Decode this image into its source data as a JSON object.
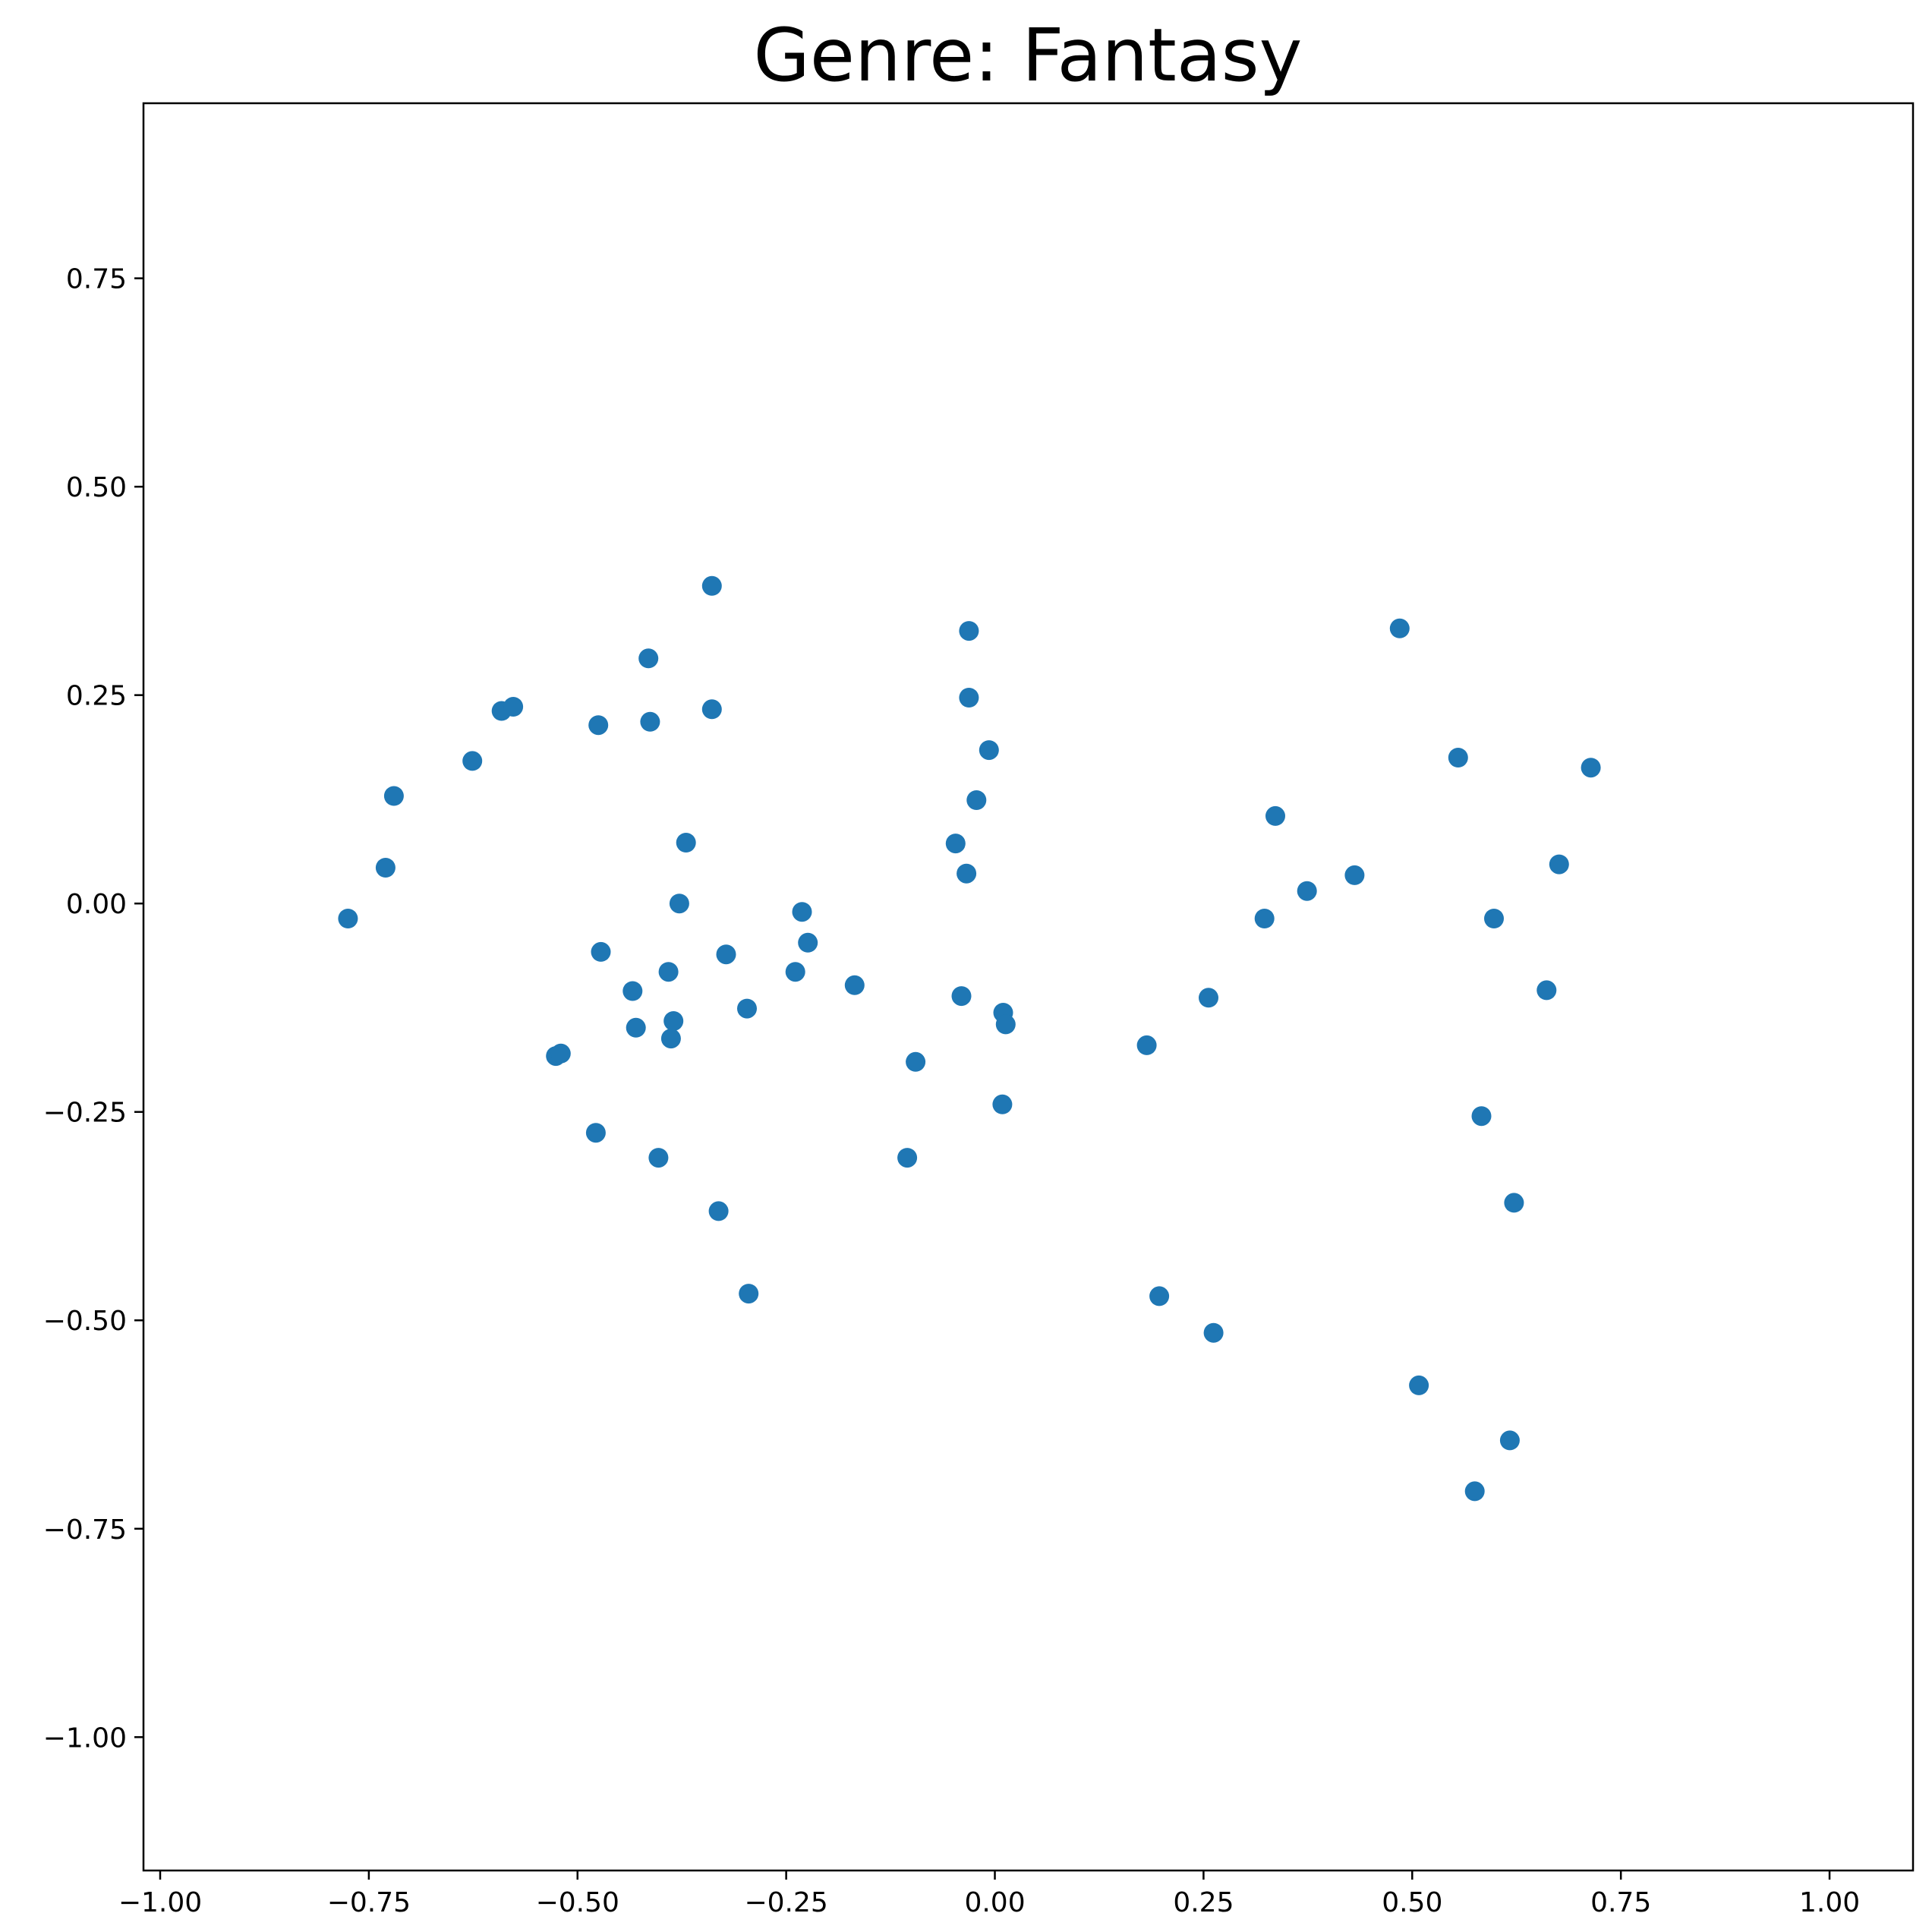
{
  "chart_data": {
    "type": "scatter",
    "title": "Genre: Fantasy",
    "xlabel": "",
    "ylabel": "",
    "xlim": [
      -1.02,
      1.1
    ],
    "ylim": [
      -1.16,
      0.96
    ],
    "grid": false,
    "legend": "none",
    "marker_color": "#1f77b4",
    "x_ticks": [
      -1.0,
      -0.75,
      -0.5,
      -0.25,
      0.0,
      0.25,
      0.5,
      0.75,
      1.0
    ],
    "x_tick_labels": [
      "−1.00",
      "−0.75",
      "−0.50",
      "−0.25",
      "0.00",
      "0.25",
      "0.50",
      "0.75",
      "1.00"
    ],
    "y_ticks": [
      0.75,
      0.5,
      0.25,
      0.0,
      -0.25,
      -0.5,
      -0.75,
      -1.0
    ],
    "y_tick_labels": [
      "0.75",
      "0.50",
      "0.25",
      "0.00",
      "−0.25",
      "−0.50",
      "−0.75",
      "−1.00"
    ],
    "points": [
      [
        -0.775,
        -0.018
      ],
      [
        -0.73,
        0.043
      ],
      [
        -0.72,
        0.129
      ],
      [
        -0.626,
        0.171
      ],
      [
        -0.591,
        0.231
      ],
      [
        -0.577,
        0.236
      ],
      [
        -0.475,
        0.214
      ],
      [
        -0.415,
        0.294
      ],
      [
        -0.413,
        0.218
      ],
      [
        -0.339,
        0.381
      ],
      [
        -0.339,
        0.233
      ],
      [
        -0.37,
        0.073
      ],
      [
        -0.378,
        0.0
      ],
      [
        -0.472,
        -0.058
      ],
      [
        -0.391,
        -0.082
      ],
      [
        -0.322,
        -0.061
      ],
      [
        -0.434,
        -0.105
      ],
      [
        -0.43,
        -0.149
      ],
      [
        -0.385,
        -0.141
      ],
      [
        -0.388,
        -0.162
      ],
      [
        -0.297,
        -0.126
      ],
      [
        -0.526,
        -0.183
      ],
      [
        -0.52,
        -0.18
      ],
      [
        -0.478,
        -0.275
      ],
      [
        -0.403,
        -0.305
      ],
      [
        -0.331,
        -0.369
      ],
      [
        -0.295,
        -0.468
      ],
      [
        -0.231,
        -0.01
      ],
      [
        -0.224,
        -0.047
      ],
      [
        -0.239,
        -0.082
      ],
      [
        -0.168,
        -0.098
      ],
      [
        -0.095,
        -0.19
      ],
      [
        -0.105,
        -0.305
      ],
      [
        -0.031,
        0.327
      ],
      [
        -0.031,
        0.247
      ],
      [
        -0.007,
        0.184
      ],
      [
        -0.022,
        0.124
      ],
      [
        -0.047,
        0.072
      ],
      [
        -0.034,
        0.036
      ],
      [
        -0.04,
        -0.111
      ],
      [
        0.01,
        -0.131
      ],
      [
        0.013,
        -0.145
      ],
      [
        0.009,
        -0.241
      ],
      [
        0.182,
        -0.17
      ],
      [
        0.197,
        -0.471
      ],
      [
        0.256,
        -0.113
      ],
      [
        0.262,
        -0.515
      ],
      [
        0.323,
        -0.018
      ],
      [
        0.336,
        0.105
      ],
      [
        0.374,
        0.015
      ],
      [
        0.431,
        0.034
      ],
      [
        0.485,
        0.33
      ],
      [
        0.508,
        -0.578
      ],
      [
        0.555,
        0.175
      ],
      [
        0.598,
        -0.018
      ],
      [
        0.583,
        -0.255
      ],
      [
        0.622,
        -0.359
      ],
      [
        0.617,
        -0.644
      ],
      [
        0.575,
        -0.705
      ],
      [
        0.661,
        -0.104
      ],
      [
        0.676,
        0.047
      ],
      [
        0.714,
        0.163
      ]
    ]
  }
}
